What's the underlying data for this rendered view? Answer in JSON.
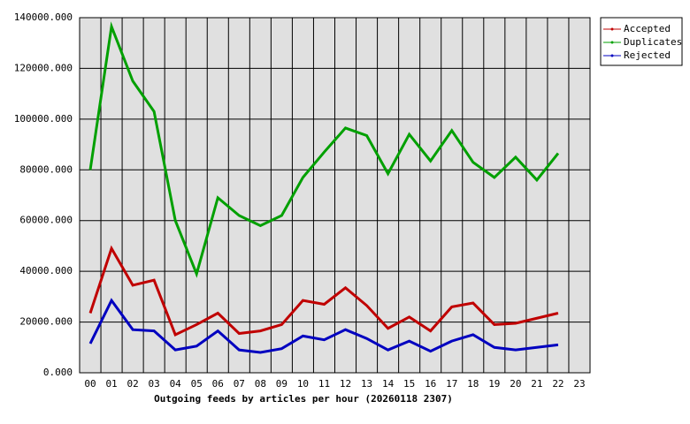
{
  "chart_data": {
    "type": "line",
    "title": "Outgoing feeds by articles per hour (20260118 2307)",
    "categories": [
      "00",
      "01",
      "02",
      "03",
      "04",
      "05",
      "06",
      "07",
      "08",
      "09",
      "10",
      "11",
      "12",
      "13",
      "14",
      "15",
      "16",
      "17",
      "18",
      "19",
      "20",
      "21",
      "22",
      "23"
    ],
    "series": [
      {
        "name": "Accepted",
        "color": "#c00000",
        "values": [
          23500,
          49000,
          34500,
          36500,
          15000,
          19000,
          23500,
          15500,
          16500,
          19000,
          28500,
          27000,
          33500,
          26500,
          17500,
          22000,
          16500,
          26000,
          27500,
          19000,
          19500,
          21500,
          23500,
          null
        ]
      },
      {
        "name": "Duplicates",
        "color": "#00a000",
        "values": [
          80000,
          136500,
          115000,
          103000,
          60000,
          39000,
          69000,
          62000,
          58000,
          62000,
          77000,
          87000,
          96500,
          93500,
          78500,
          94000,
          83500,
          95500,
          83000,
          77000,
          85000,
          76000,
          86500,
          null
        ]
      },
      {
        "name": "Rejected",
        "color": "#0000c0",
        "values": [
          11500,
          28500,
          17000,
          16500,
          9000,
          10500,
          16500,
          9000,
          8000,
          9500,
          14500,
          13000,
          17000,
          13500,
          9000,
          12500,
          8500,
          12500,
          15000,
          10000,
          9000,
          10000,
          11000,
          null
        ]
      }
    ],
    "ylim": [
      0,
      140000
    ],
    "yticks": [
      {
        "value": 0,
        "label": "0.000"
      },
      {
        "value": 20000,
        "label": "20000.000"
      },
      {
        "value": 40000,
        "label": "40000.000"
      },
      {
        "value": 60000,
        "label": "60000.000"
      },
      {
        "value": 80000,
        "label": "80000.000"
      },
      {
        "value": 100000,
        "label": "100000.000"
      },
      {
        "value": 120000,
        "label": "120000.000"
      },
      {
        "value": 140000,
        "label": "140000.000"
      }
    ],
    "grid": true,
    "legend": "top-right"
  }
}
